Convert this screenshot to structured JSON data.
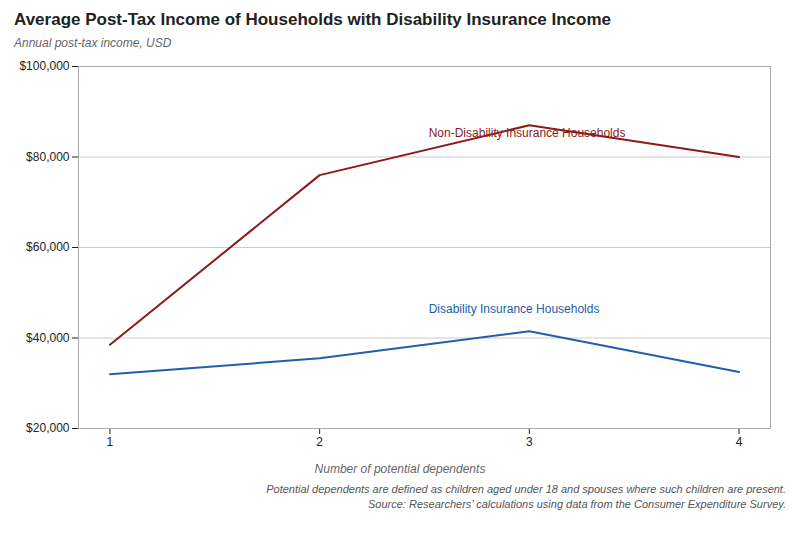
{
  "chart_data": {
    "type": "line",
    "title": "Average Post-Tax Income of Households with Disability Insurance Income",
    "ylabel": "Annual post-tax income, USD",
    "xlabel": "Number of potential dependents",
    "x": [
      1,
      2,
      3,
      4
    ],
    "series": [
      {
        "name": "Non-Disability Insurance Households",
        "color": "#8B1A1A",
        "values": [
          38500,
          76000,
          87000,
          80000
        ]
      },
      {
        "name": "Disability Insurance Households",
        "color": "#2060A8",
        "values": [
          32000,
          35500,
          41500,
          32500
        ]
      }
    ],
    "annotations": [
      {
        "text": "Non-Disability Insurance Households",
        "x": 2.52,
        "y": 84500,
        "color": "#8B1A1A"
      },
      {
        "text": "Disability Insurance Households",
        "x": 2.52,
        "y": 45500,
        "color": "#2060A8"
      }
    ],
    "xlim": [
      0.85,
      4.15
    ],
    "xticks": [
      1,
      2,
      3,
      4
    ],
    "ylim": [
      20000,
      100000
    ],
    "yticks": [
      {
        "value": 20000,
        "label": "$20,000"
      },
      {
        "value": 40000,
        "label": "$40,000"
      },
      {
        "value": 60000,
        "label": "$60,000"
      },
      {
        "value": 80000,
        "label": "$80,000"
      },
      {
        "value": 100000,
        "label": "$100,000"
      }
    ],
    "grid": true,
    "footnote": [
      "Potential dependents are defined as children aged under 18 and spouses where such children are present.",
      "Source: Researchers’ calculations using data from the Consumer Expenditure Survey."
    ]
  }
}
